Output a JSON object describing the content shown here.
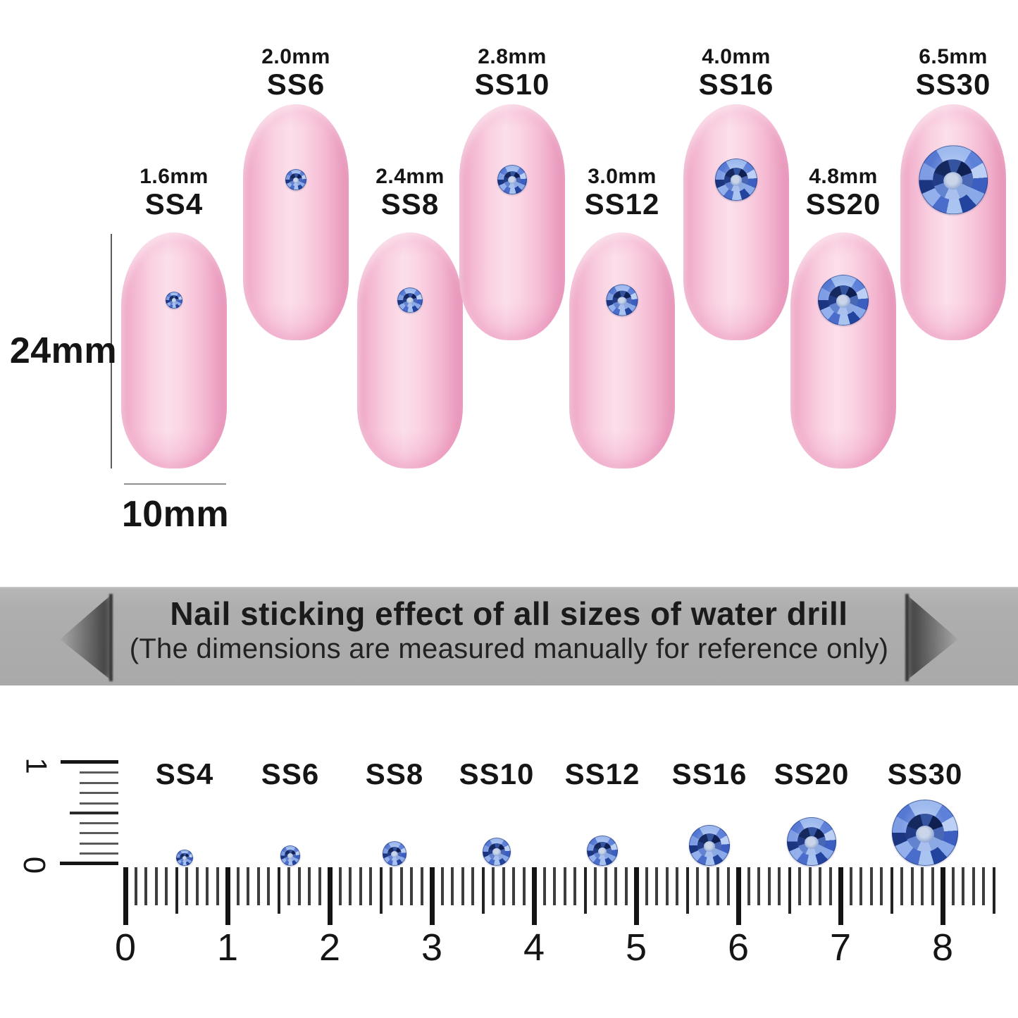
{
  "nails": [
    {
      "ss_label": "SS4",
      "size_label": "1.6mm",
      "mm": 1.6
    },
    {
      "ss_label": "SS6",
      "size_label": "2.0mm",
      "mm": 2.0
    },
    {
      "ss_label": "SS8",
      "size_label": "2.4mm",
      "mm": 2.4
    },
    {
      "ss_label": "SS10",
      "size_label": "2.8mm",
      "mm": 2.8
    },
    {
      "ss_label": "SS12",
      "size_label": "3.0mm",
      "mm": 3.0
    },
    {
      "ss_label": "SS16",
      "size_label": "4.0mm",
      "mm": 4.0
    },
    {
      "ss_label": "SS20",
      "size_label": "4.8mm",
      "mm": 4.8
    },
    {
      "ss_label": "SS30",
      "size_label": "6.5mm",
      "mm": 6.5
    }
  ],
  "measure": {
    "height_label": "24mm",
    "width_label": "10mm"
  },
  "banner": {
    "title": "Nail sticking effect of all sizes of water drill",
    "subtitle": "(The dimensions are measured manually for reference only)",
    "bg_color": "#aeaeae",
    "text_color": "#1b1b1b"
  },
  "ruler": {
    "numbers": [
      "0",
      "1",
      "2",
      "3",
      "4",
      "5",
      "6",
      "7",
      "8"
    ],
    "vertical_top_number": "1",
    "vertical_bottom_number": "0",
    "stones": [
      {
        "label": "SS4",
        "mm": 1.6
      },
      {
        "label": "SS6",
        "mm": 2.0
      },
      {
        "label": "SS8",
        "mm": 2.4
      },
      {
        "label": "SS10",
        "mm": 2.8
      },
      {
        "label": "SS12",
        "mm": 3.0
      },
      {
        "label": "SS16",
        "mm": 4.0
      },
      {
        "label": "SS20",
        "mm": 4.8
      },
      {
        "label": "SS30",
        "mm": 6.5
      }
    ]
  },
  "colors": {
    "nail_pink": "#f9cfe0",
    "stone_blue_mid": "#5d80d8",
    "stone_blue_light": "#bccff4",
    "stone_blue_navy": "#1b3580",
    "tick_black": "#141414"
  }
}
